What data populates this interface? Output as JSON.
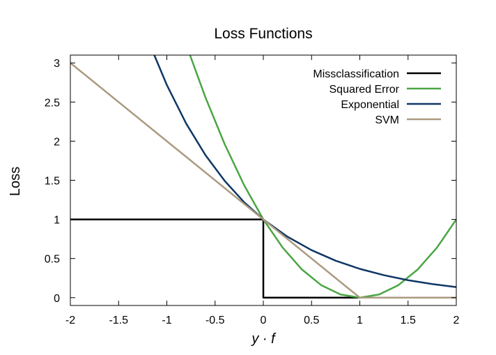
{
  "chart_data": {
    "type": "line",
    "title": "Loss Functions",
    "xlabel": "y · f",
    "ylabel": "Loss",
    "xlim": [
      -2,
      2
    ],
    "ylim": [
      -0.1,
      3.1
    ],
    "xticks": [
      "-2",
      "-1.5",
      "-1",
      "-0.5",
      "0",
      "0.5",
      "1",
      "1.5",
      "2"
    ],
    "yticks": [
      "0",
      "0.5",
      "1",
      "1.5",
      "2",
      "2.5",
      "3"
    ],
    "grid": false,
    "legend_position": "top-right",
    "series": [
      {
        "name": "Missclassification",
        "color": "#000000",
        "x": [
          -2,
          0,
          0,
          2
        ],
        "y": [
          1,
          1,
          0,
          0
        ]
      },
      {
        "name": "Squared Error",
        "color": "#4aa544",
        "x": [
          -0.76,
          -0.6,
          -0.4,
          -0.2,
          0,
          0.2,
          0.4,
          0.6,
          0.8,
          1,
          1.2,
          1.4,
          1.6,
          1.8,
          2
        ],
        "y": [
          3.1,
          2.56,
          1.96,
          1.44,
          1,
          0.64,
          0.36,
          0.16,
          0.04,
          0,
          0.04,
          0.16,
          0.36,
          0.64,
          1
        ]
      },
      {
        "name": "Exponential",
        "color": "#0e3765",
        "x": [
          -1.13,
          -1,
          -0.8,
          -0.6,
          -0.4,
          -0.2,
          0,
          0.25,
          0.5,
          0.75,
          1,
          1.25,
          1.5,
          1.75,
          2
        ],
        "y": [
          3.1,
          2.718,
          2.226,
          1.822,
          1.492,
          1.221,
          1,
          0.779,
          0.607,
          0.472,
          0.368,
          0.287,
          0.223,
          0.174,
          0.135
        ]
      },
      {
        "name": "SVM",
        "color": "#ab9a80",
        "x": [
          -2,
          1,
          2
        ],
        "y": [
          3,
          0,
          0
        ]
      }
    ]
  }
}
